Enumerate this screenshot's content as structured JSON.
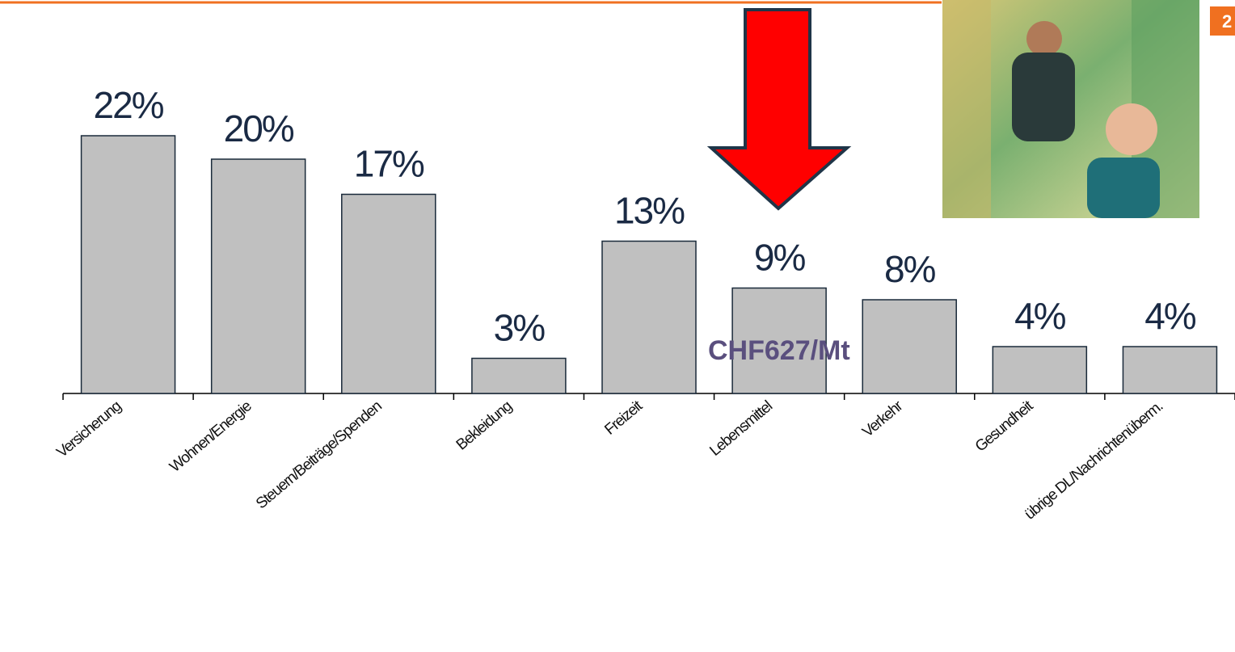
{
  "chart_data": {
    "type": "bar",
    "categories": [
      "Versicherung",
      "Wohnen/Energie",
      "Steuern/Beiträge/Spenden",
      "Bekleidung",
      "Freizeit",
      "Lebensmittel",
      "Verkehr",
      "Gesundheit",
      "übrige DL/Nachrichtenüberm."
    ],
    "values": [
      22,
      20,
      17,
      3,
      13,
      9,
      8,
      4,
      4
    ],
    "value_labels": [
      "22%",
      "20%",
      "17%",
      "3%",
      "13%",
      "9%",
      "8%",
      "4%",
      "4%"
    ],
    "color": "#c0c0c0",
    "ylim": [
      0,
      22
    ],
    "annotation": "CHF627/Mt",
    "page_number": "2"
  }
}
